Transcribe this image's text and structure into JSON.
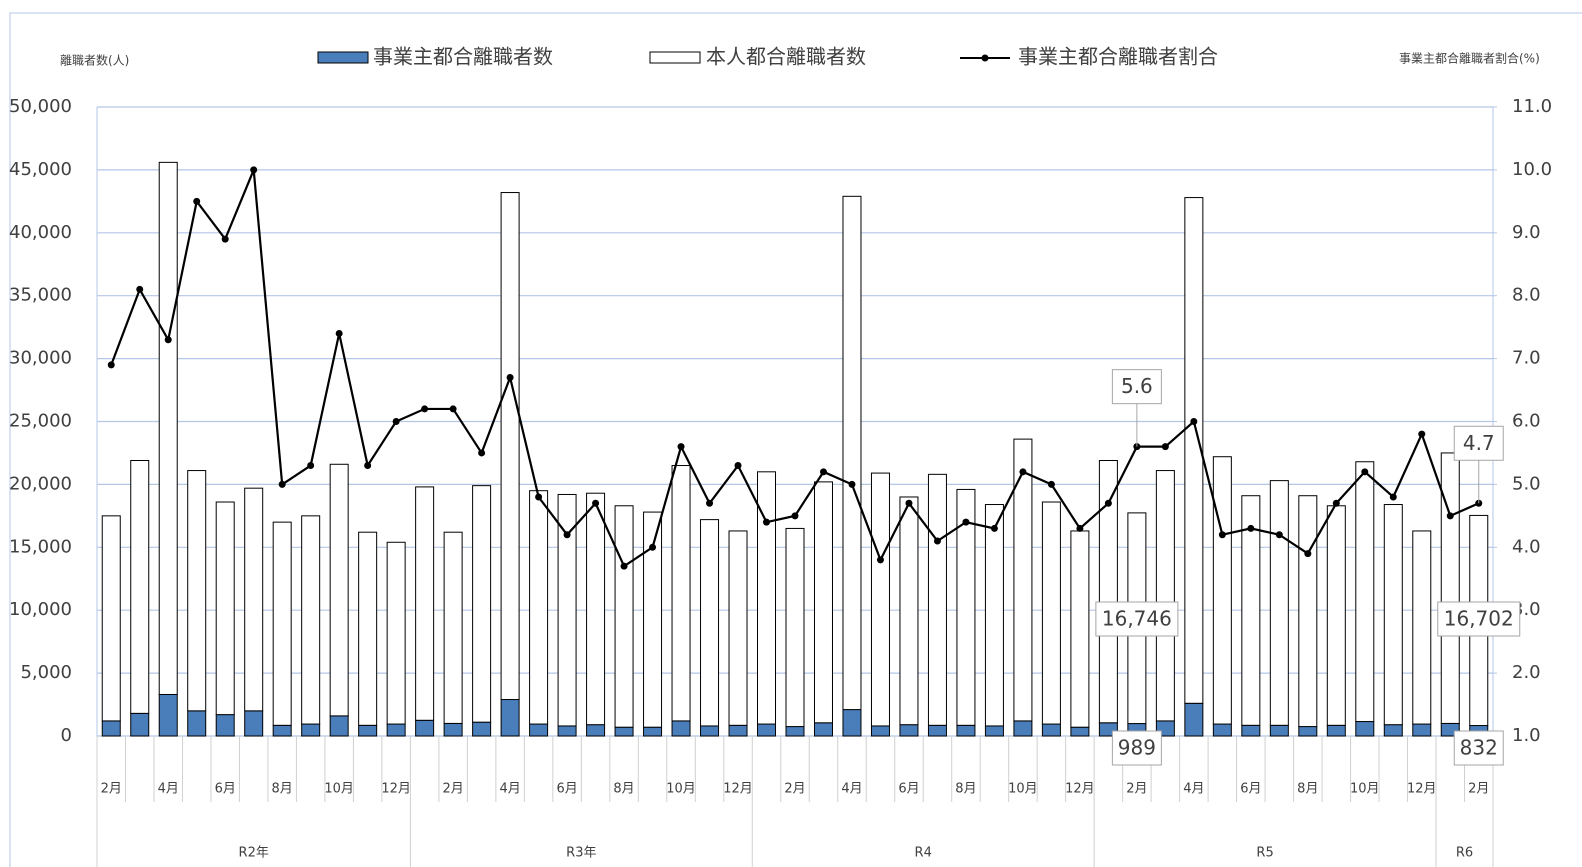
{
  "chart_data": {
    "type": "bar_line",
    "y_label": "離職者数(人)",
    "y2_label": "事業主都合離職者割合(%)",
    "categories": [
      "2月",
      null,
      "4月",
      null,
      "6月",
      null,
      "8月",
      null,
      "10月",
      null,
      "12月",
      null,
      "2月",
      null,
      "4月",
      null,
      "6月",
      null,
      "8月",
      null,
      "10月",
      null,
      "12月",
      null,
      "2月",
      null,
      "4月",
      null,
      "6月",
      null,
      "8月",
      null,
      "10月",
      null,
      "12月",
      null,
      "2月",
      null,
      "4月",
      null,
      "6月",
      null,
      "8月",
      null,
      "10月",
      null,
      "12月",
      null,
      "2月"
    ],
    "years": [
      "R2年",
      "R2年",
      "R2年",
      "R2年",
      "R2年",
      "R2年",
      "R2年",
      "R2年",
      "R2年",
      "R2年",
      "R2年",
      "R3年",
      "R3年",
      "R3年",
      "R3年",
      "R3年",
      "R3年",
      "R3年",
      "R3年",
      "R3年",
      "R3年",
      "R3年",
      "R3年",
      "R4",
      "R4",
      "R4",
      "R4",
      "R4",
      "R4",
      "R4",
      "R4",
      "R4",
      "R4",
      "R4",
      "R4",
      "R5",
      "R5",
      "R5",
      "R5",
      "R5",
      "R5",
      "R5",
      "R5",
      "R5",
      "R5",
      "R5",
      "R5",
      "R6",
      "R6"
    ],
    "series": [
      {
        "name": "事業主都合離職者数",
        "color": "#4a7ebb",
        "kind": "bar",
        "values": [
          1200,
          1800,
          3300,
          2000,
          1700,
          2000,
          850,
          950,
          1600,
          850,
          950,
          1250,
          1000,
          1100,
          2900,
          950,
          800,
          900,
          700,
          700,
          1200,
          800,
          850,
          950,
          750,
          1050,
          2100,
          800,
          900,
          850,
          850,
          800,
          1200,
          950,
          700,
          1050,
          989,
          1200,
          2600,
          950,
          850,
          850,
          750,
          850,
          1150,
          900,
          950,
          1000,
          832
        ],
        "value_labels": [
          null,
          null,
          null,
          null,
          null,
          null,
          null,
          null,
          null,
          null,
          null,
          null,
          null,
          null,
          null,
          null,
          null,
          null,
          null,
          null,
          null,
          null,
          null,
          null,
          null,
          null,
          null,
          null,
          null,
          null,
          null,
          null,
          null,
          null,
          null,
          null,
          "989",
          null,
          null,
          null,
          null,
          null,
          null,
          null,
          null,
          null,
          null,
          null,
          "832"
        ]
      },
      {
        "name": "本人都合離職者数",
        "color": "#ffffff",
        "kind": "bar",
        "values": [
          16300,
          20100,
          42300,
          19100,
          16900,
          17700,
          16150,
          16550,
          20000,
          15350,
          14450,
          18550,
          15200,
          18800,
          40300,
          18550,
          18400,
          18400,
          17600,
          17100,
          20300,
          16400,
          15450,
          20050,
          15750,
          19150,
          40800,
          20100,
          18100,
          19950,
          18750,
          17600,
          22400,
          17650,
          15600,
          20850,
          16746,
          19900,
          40200,
          21250,
          18250,
          19450,
          18350,
          17450,
          20650,
          17500,
          15350,
          21500,
          16702
        ],
        "value_labels": [
          null,
          null,
          null,
          null,
          null,
          null,
          null,
          null,
          null,
          null,
          null,
          null,
          null,
          null,
          null,
          null,
          null,
          null,
          null,
          null,
          null,
          null,
          null,
          null,
          null,
          null,
          null,
          null,
          null,
          null,
          null,
          null,
          null,
          null,
          null,
          null,
          "16,746",
          null,
          null,
          null,
          null,
          null,
          null,
          null,
          null,
          null,
          null,
          null,
          "16,702"
        ]
      },
      {
        "name": "事業主都合離職者割合",
        "color": "#000000",
        "kind": "line",
        "axis": "y2",
        "values": [
          6.9,
          8.1,
          7.3,
          9.5,
          8.9,
          10.0,
          5.0,
          5.3,
          7.4,
          5.3,
          6.0,
          6.2,
          6.2,
          5.5,
          6.7,
          4.8,
          4.2,
          4.7,
          3.7,
          4.0,
          5.6,
          4.7,
          5.3,
          4.4,
          4.5,
          5.2,
          5.0,
          3.8,
          4.7,
          4.1,
          4.4,
          4.3,
          5.2,
          5.0,
          4.3,
          4.7,
          5.6,
          5.6,
          6.0,
          4.2,
          4.3,
          4.2,
          3.9,
          4.7,
          5.2,
          4.8,
          5.8,
          4.5,
          4.7
        ],
        "value_labels": [
          null,
          null,
          null,
          null,
          null,
          null,
          null,
          null,
          null,
          null,
          null,
          null,
          null,
          null,
          null,
          null,
          null,
          null,
          null,
          null,
          null,
          null,
          null,
          null,
          null,
          null,
          null,
          null,
          null,
          null,
          null,
          null,
          null,
          null,
          null,
          null,
          "5.6",
          null,
          null,
          null,
          null,
          null,
          null,
          null,
          null,
          null,
          null,
          null,
          "4.7"
        ]
      }
    ],
    "ylim": [
      0,
      50000
    ],
    "yticks": [
      0,
      {
        "value": 5000,
        "label": "5,000"
      },
      {
        "value": 10000,
        "label": "10,000"
      },
      {
        "value": 15000,
        "label": "15,000"
      },
      {
        "value": 20000,
        "label": "20,000"
      },
      {
        "value": 25000,
        "label": "25,000"
      },
      {
        "value": 30000,
        "label": "30,000"
      },
      {
        "value": 35000,
        "label": "35,000"
      },
      {
        "value": 40000,
        "label": "40,000"
      },
      {
        "value": 45000,
        "label": "45,000"
      },
      {
        "value": 50000,
        "label": "50,000"
      }
    ],
    "y2lim": [
      1,
      11
    ],
    "y2ticks": [
      {
        "value": 1,
        "label": "1.0"
      },
      {
        "value": 2,
        "label": "2.0"
      },
      {
        "value": 3,
        "label": "3.0"
      },
      {
        "value": 4,
        "label": "4.0"
      },
      {
        "value": 5,
        "label": "5.0"
      },
      {
        "value": 6,
        "label": "6.0"
      },
      {
        "value": 7,
        "label": "7.0"
      },
      {
        "value": 8,
        "label": "8.0"
      },
      {
        "value": 9,
        "label": "9.0"
      },
      {
        "value": 10,
        "label": "10.0"
      },
      {
        "value": 11,
        "label": "11.0"
      }
    ],
    "grid": true
  }
}
